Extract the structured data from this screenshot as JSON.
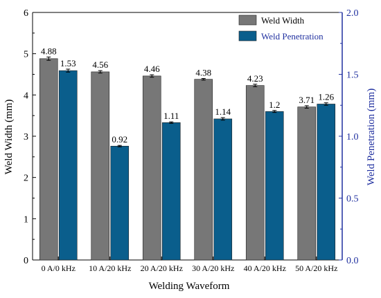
{
  "chart_data": {
    "type": "bar",
    "categories": [
      "0 A/0 kHz",
      "10 A/20 kHz",
      "20 A/20 kHz",
      "30 A/20 kHz",
      "40 A/20 kHz",
      "50 A/20 kHz"
    ],
    "series": [
      {
        "name": "Weld Width",
        "axis": "left",
        "color": "#777777",
        "values": [
          4.88,
          4.56,
          4.46,
          4.38,
          4.23,
          3.71
        ],
        "labels": [
          "4.88",
          "4.56",
          "4.46",
          "4.38",
          "4.23",
          "3.71"
        ],
        "errors": [
          0.04,
          0.03,
          0.03,
          0.02,
          0.03,
          0.03
        ]
      },
      {
        "name": "Weld Penetration",
        "axis": "right",
        "color": "#0a5e8c",
        "values": [
          1.53,
          0.92,
          1.11,
          1.14,
          1.2,
          1.26
        ],
        "labels": [
          "1.53",
          "0.92",
          "1.11",
          "1.14",
          "1.2",
          "1.26"
        ],
        "errors": [
          0.012,
          0.006,
          0.006,
          0.01,
          0.008,
          0.01
        ]
      }
    ],
    "xlabel": "Welding Waveform",
    "ylabel": "Weld Width (mm)",
    "y2label": "Weld Penetration (mm)",
    "ylim": [
      0,
      6
    ],
    "y2lim": [
      0,
      2
    ],
    "yticks": [
      "0",
      "1",
      "2",
      "3",
      "4",
      "5",
      "6"
    ],
    "y2ticks": [
      "0.0",
      "0.5",
      "1.0",
      "1.5",
      "2.0"
    ],
    "right_axis_color": "#1f2f9f",
    "grid": false,
    "legend_position": "top-right"
  }
}
